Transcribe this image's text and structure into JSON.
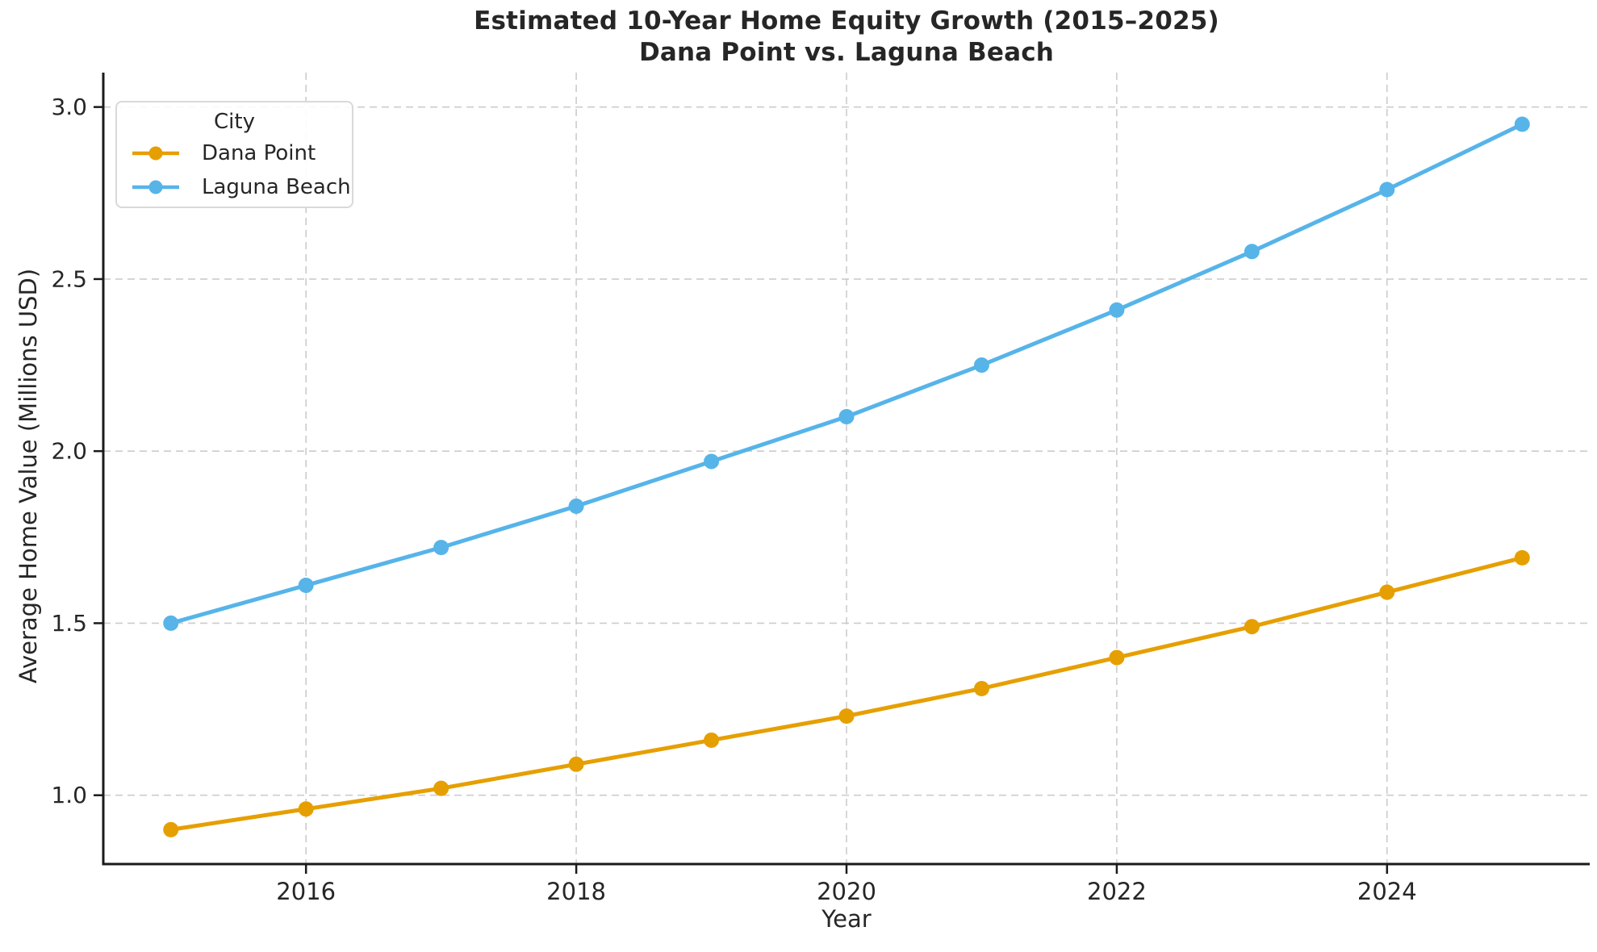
{
  "chart": {
    "title_line1": "Estimated 10-Year Home Equity Growth (2015–2025)",
    "title_line2": "Dana Point vs. Laguna Beach",
    "xlabel": "Year",
    "ylabel": "Average Home Value (Millions USD)",
    "legend": {
      "title": "City",
      "items": [
        {
          "label": "Dana Point",
          "color": "#E69F00"
        },
        {
          "label": "Laguna Beach",
          "color": "#56B4E9"
        }
      ]
    }
  },
  "chart_data": {
    "type": "line",
    "title": "Estimated 10-Year Home Equity Growth (2015–2025) — Dana Point vs. Laguna Beach",
    "xlabel": "Year",
    "ylabel": "Average Home Value (Millions USD)",
    "x": [
      2015,
      2016,
      2017,
      2018,
      2019,
      2020,
      2021,
      2022,
      2023,
      2024,
      2025
    ],
    "series": [
      {
        "name": "Dana Point",
        "color": "#E69F00",
        "values": [
          0.9,
          0.96,
          1.02,
          1.09,
          1.16,
          1.23,
          1.31,
          1.4,
          1.49,
          1.59,
          1.69
        ]
      },
      {
        "name": "Laguna Beach",
        "color": "#56B4E9",
        "values": [
          1.5,
          1.61,
          1.72,
          1.84,
          1.97,
          2.1,
          2.25,
          2.41,
          2.58,
          2.76,
          2.95
        ]
      }
    ],
    "xlim": [
      2014.5,
      2025.5
    ],
    "ylim": [
      0.8,
      3.1
    ],
    "x_ticks": [
      2016,
      2018,
      2020,
      2022,
      2024
    ],
    "y_ticks": [
      1.0,
      1.5,
      2.0,
      2.5,
      3.0
    ],
    "grid": true,
    "grid_style": "dashed",
    "grid_color": "#cccccc",
    "spine_color": "#1a1a1a",
    "text_color": "#262626",
    "legend_position": "upper left",
    "legend_title": "City"
  }
}
